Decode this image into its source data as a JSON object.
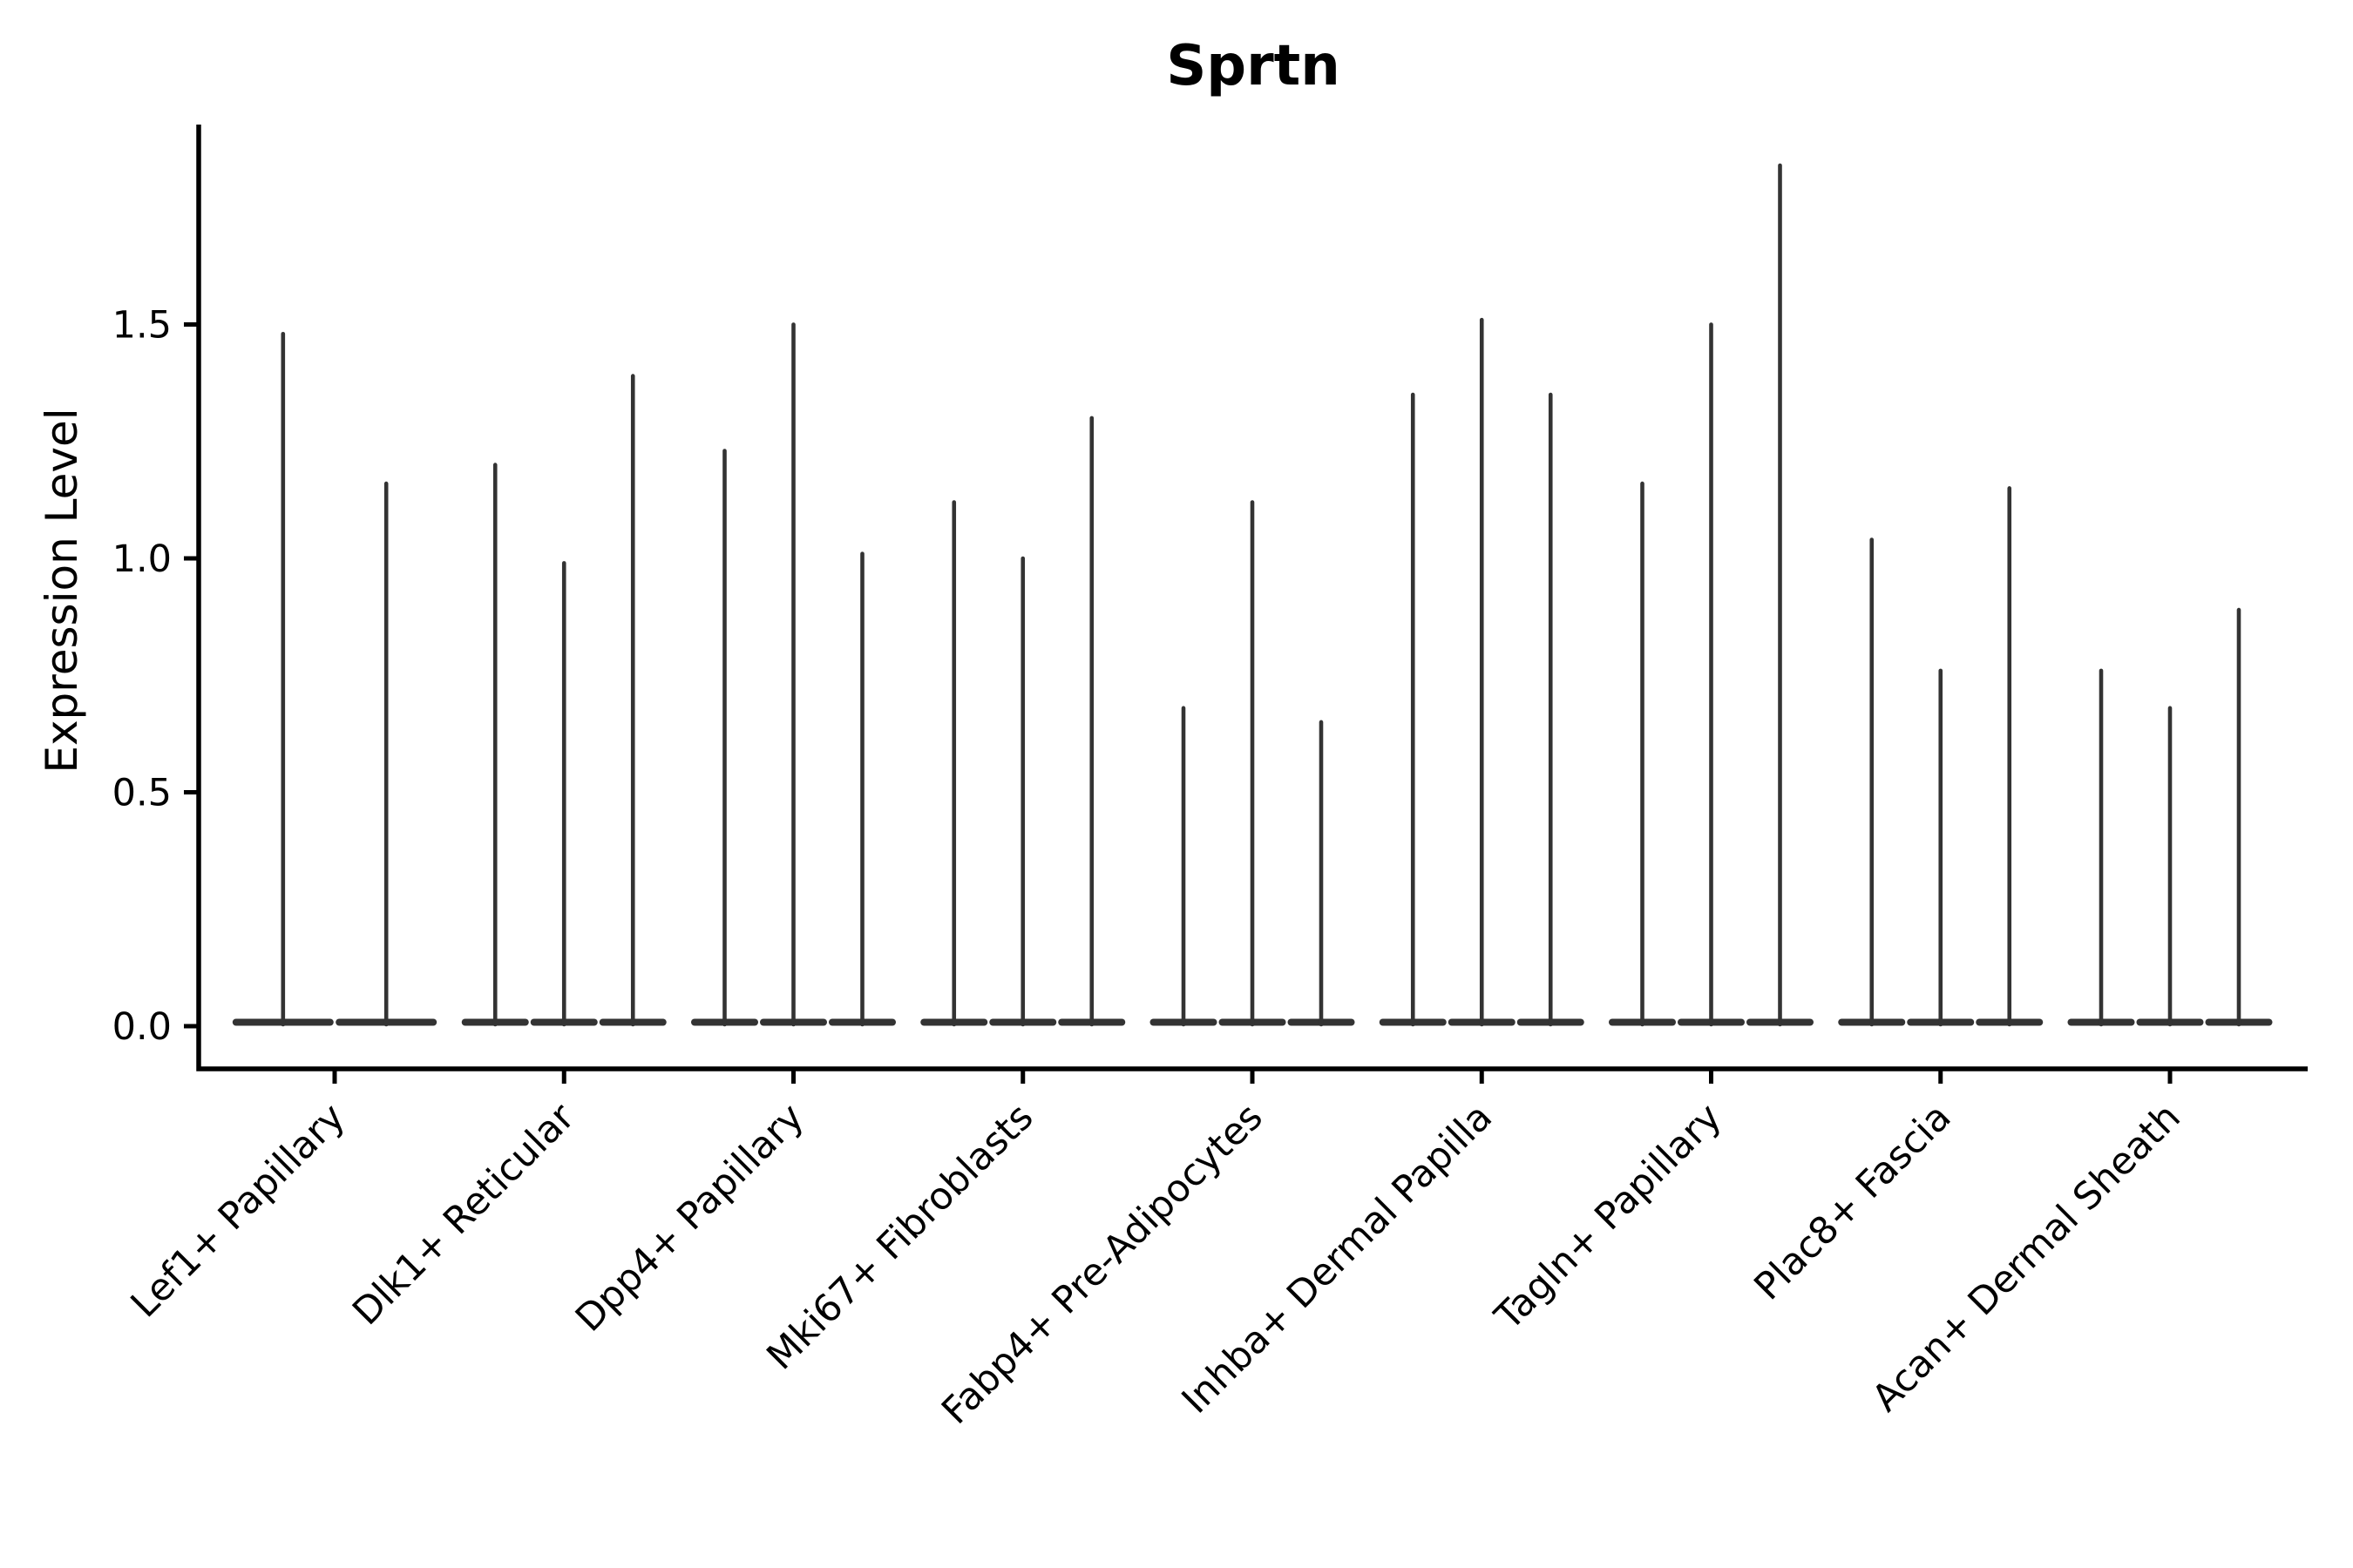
{
  "chart_data": {
    "type": "violin",
    "title": "Sprtn",
    "xlabel": "",
    "ylabel": "Expression Level",
    "categories": [
      "Lef1+ Papillary",
      "Dlk1+ Reticular",
      "Dpp4+ Papillary",
      "Mki67+ Fibroblasts",
      "Fabp4+ Pre-Adipocytes",
      "Inhba+ Dermal Papilla",
      "Tagln+ Papillary",
      "Plac8+ Fascia",
      "Acan+ Dermal Sheath"
    ],
    "violin_maxima": [
      [
        1.48,
        1.16
      ],
      [
        1.2,
        0.99,
        1.39
      ],
      [
        1.23,
        1.5,
        1.01
      ],
      [
        1.12,
        1.0,
        1.3
      ],
      [
        0.68,
        1.12,
        0.65
      ],
      [
        1.35,
        1.51,
        1.35
      ],
      [
        1.16,
        1.5,
        1.84
      ],
      [
        1.04,
        0.76,
        1.15
      ],
      [
        0.76,
        0.68,
        0.89
      ]
    ],
    "violin_shape": "thin spike from dense flat base at 0 up to maximum",
    "yticks": [
      0.0,
      0.5,
      1.0,
      1.5
    ],
    "ytick_format_decimals": 1,
    "ylim": [
      -0.09,
      1.93
    ],
    "grid": false,
    "legend": "none",
    "xtick_label_rotation_deg": 45,
    "colors": {
      "violin_fill": "#333333",
      "axis": "#000000",
      "text": "#000000",
      "background": "#ffffff"
    }
  }
}
